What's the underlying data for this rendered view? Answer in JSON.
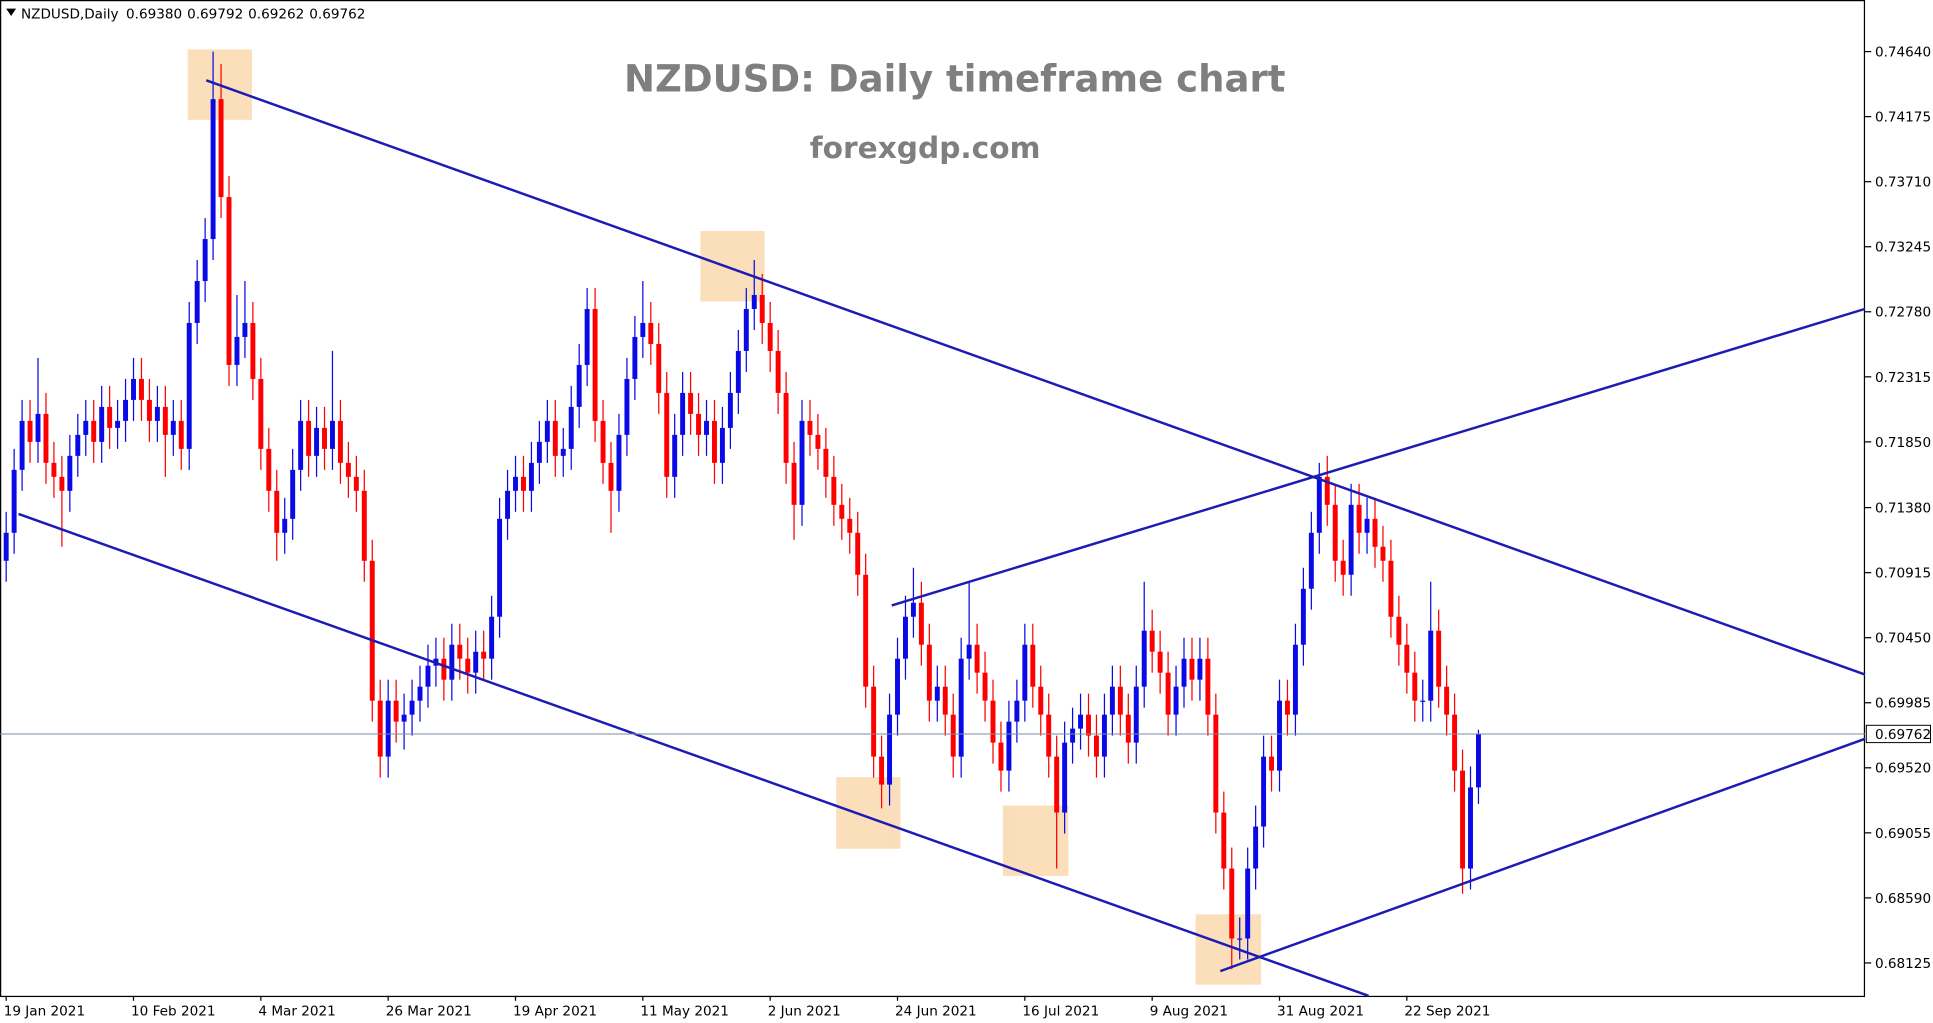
{
  "header": {
    "symbol": "NZDUSD,Daily",
    "ohlc": [
      "0.69380",
      "0.69792",
      "0.69262",
      "0.69762"
    ]
  },
  "chart_data": {
    "type": "candlestick",
    "title": "NZDUSD: Daily timeframe chart",
    "subtitle": "forexgdp.com",
    "up_color": "#0a0ae6",
    "down_color": "#ff0000",
    "categories": [
      "19 Jan 2021",
      null,
      null,
      null,
      null,
      null,
      null,
      null,
      null,
      null,
      null,
      null,
      null,
      null,
      null,
      null,
      "10 Feb 2021",
      null,
      null,
      null,
      null,
      null,
      null,
      null,
      null,
      null,
      null,
      null,
      null,
      null,
      null,
      null,
      "4 Mar 2021",
      null,
      null,
      null,
      null,
      null,
      null,
      null,
      null,
      null,
      null,
      null,
      null,
      null,
      null,
      null,
      "26 Mar 2021",
      null,
      null,
      null,
      null,
      null,
      null,
      null,
      null,
      null,
      null,
      null,
      null,
      null,
      null,
      null,
      "19 Apr 2021",
      null,
      null,
      null,
      null,
      null,
      null,
      null,
      null,
      null,
      null,
      null,
      null,
      null,
      null,
      null,
      "11 May 2021",
      null,
      null,
      null,
      null,
      null,
      null,
      null,
      null,
      null,
      null,
      null,
      null,
      null,
      null,
      null,
      "2 Jun 2021",
      null,
      null,
      null,
      null,
      null,
      null,
      null,
      null,
      null,
      null,
      null,
      null,
      null,
      null,
      null,
      "24 Jun 2021",
      null,
      null,
      null,
      null,
      null,
      null,
      null,
      null,
      null,
      null,
      null,
      null,
      null,
      null,
      null,
      "16 Jul 2021",
      null,
      null,
      null,
      null,
      null,
      null,
      null,
      null,
      null,
      null,
      null,
      null,
      null,
      null,
      null,
      "9 Aug 2021",
      null,
      null,
      null,
      null,
      null,
      null,
      null,
      null,
      null,
      null,
      null,
      null,
      null,
      null,
      null,
      "31 Aug 2021",
      null,
      null,
      null,
      null,
      null,
      null,
      null,
      null,
      null,
      null,
      null,
      null,
      null,
      null,
      null,
      "22 Sep 2021",
      null,
      null,
      null,
      null,
      null,
      null,
      null,
      null,
      null
    ],
    "open": [
      0.71,
      0.712,
      0.7165,
      0.72,
      0.7185,
      0.7205,
      0.717,
      0.716,
      0.715,
      0.7175,
      0.719,
      0.72,
      0.7185,
      0.721,
      0.7195,
      0.72,
      0.7215,
      0.723,
      0.7215,
      0.72,
      0.721,
      0.719,
      0.72,
      0.718,
      0.727,
      0.73,
      0.733,
      0.743,
      0.736,
      0.724,
      0.726,
      0.727,
      0.723,
      0.718,
      0.715,
      0.712,
      0.713,
      0.7165,
      0.72,
      0.7175,
      0.7195,
      0.718,
      0.72,
      0.717,
      0.716,
      0.715,
      0.71,
      0.7,
      0.696,
      0.7,
      0.6985,
      0.699,
      0.7,
      0.701,
      0.7025,
      0.703,
      0.7015,
      0.704,
      0.703,
      0.702,
      0.7035,
      0.703,
      0.706,
      0.713,
      0.715,
      0.716,
      0.715,
      0.717,
      0.7185,
      0.72,
      0.7175,
      0.718,
      0.721,
      0.724,
      0.728,
      0.72,
      0.717,
      0.715,
      0.719,
      0.723,
      0.726,
      0.727,
      0.7255,
      0.722,
      0.716,
      0.719,
      0.722,
      0.7205,
      0.719,
      0.72,
      0.717,
      0.7195,
      0.722,
      0.725,
      0.728,
      0.729,
      0.727,
      0.725,
      0.722,
      0.717,
      0.714,
      0.72,
      0.719,
      0.718,
      0.716,
      0.714,
      0.713,
      0.712,
      0.709,
      0.701,
      0.696,
      0.694,
      0.699,
      0.703,
      0.706,
      0.707,
      0.704,
      0.7,
      0.701,
      0.699,
      0.696,
      0.703,
      0.704,
      0.702,
      0.7,
      0.697,
      0.695,
      0.6985,
      0.7,
      0.704,
      0.701,
      0.699,
      0.696,
      0.692,
      0.697,
      0.698,
      0.699,
      0.6975,
      0.696,
      0.699,
      0.701,
      0.699,
      0.697,
      0.701,
      0.705,
      0.7035,
      0.702,
      0.699,
      0.701,
      0.703,
      0.7015,
      0.703,
      0.699,
      0.692,
      0.688,
      0.683,
      0.683,
      0.688,
      0.691,
      0.696,
      0.695,
      0.7,
      0.699,
      0.704,
      0.708,
      0.712,
      0.716,
      0.714,
      0.71,
      0.709,
      0.714,
      0.712,
      0.713,
      0.711,
      0.71,
      0.706,
      0.704,
      0.702,
      0.7,
      0.7,
      0.705,
      0.701,
      0.699,
      0.695,
      0.688,
      0.6938
    ],
    "high": [
      0.7135,
      0.718,
      0.7215,
      0.7215,
      0.7245,
      0.722,
      0.7185,
      0.7175,
      0.719,
      0.7205,
      0.7215,
      0.7215,
      0.7225,
      0.7225,
      0.7215,
      0.723,
      0.7245,
      0.7245,
      0.723,
      0.7225,
      0.7225,
      0.7215,
      0.7215,
      0.7285,
      0.7315,
      0.7345,
      0.7464,
      0.7455,
      0.7375,
      0.729,
      0.73,
      0.7285,
      0.7245,
      0.7195,
      0.7165,
      0.7145,
      0.718,
      0.7215,
      0.7215,
      0.721,
      0.721,
      0.725,
      0.7215,
      0.7185,
      0.7175,
      0.7165,
      0.7115,
      0.7015,
      0.7015,
      0.7015,
      0.7005,
      0.7015,
      0.7025,
      0.704,
      0.7045,
      0.7045,
      0.7055,
      0.7055,
      0.7045,
      0.705,
      0.705,
      0.7075,
      0.7145,
      0.7165,
      0.7175,
      0.7175,
      0.7185,
      0.72,
      0.7215,
      0.7215,
      0.7195,
      0.7225,
      0.7255,
      0.7295,
      0.7295,
      0.7215,
      0.7185,
      0.7205,
      0.7245,
      0.7275,
      0.73,
      0.7285,
      0.727,
      0.7235,
      0.7205,
      0.7235,
      0.7235,
      0.722,
      0.7215,
      0.7215,
      0.721,
      0.7235,
      0.7265,
      0.7295,
      0.7315,
      0.7305,
      0.7285,
      0.7265,
      0.7235,
      0.7185,
      0.7215,
      0.7215,
      0.7205,
      0.7195,
      0.7175,
      0.7155,
      0.7145,
      0.7135,
      0.7105,
      0.7025,
      0.6975,
      0.7005,
      0.7045,
      0.7075,
      0.7095,
      0.7085,
      0.7055,
      0.7025,
      0.7025,
      0.7005,
      0.7045,
      0.7085,
      0.7055,
      0.7035,
      0.7015,
      0.6985,
      0.7,
      0.7015,
      0.7055,
      0.7055,
      0.7025,
      0.7005,
      0.6975,
      0.6985,
      0.6995,
      0.7005,
      0.7005,
      0.699,
      0.7005,
      0.7025,
      0.7025,
      0.7005,
      0.7025,
      0.7085,
      0.7065,
      0.705,
      0.7035,
      0.7025,
      0.7045,
      0.7045,
      0.7045,
      0.7045,
      0.7005,
      0.6935,
      0.6895,
      0.6845,
      0.6895,
      0.6925,
      0.6975,
      0.6975,
      0.7015,
      0.7015,
      0.7055,
      0.7095,
      0.7135,
      0.717,
      0.7175,
      0.7155,
      0.7115,
      0.7155,
      0.7155,
      0.7145,
      0.7145,
      0.7125,
      0.7115,
      0.7075,
      0.7055,
      0.7035,
      0.7015,
      0.7085,
      0.7065,
      0.7025,
      0.7005,
      0.6965,
      0.6953,
      0.69792
    ],
    "low": [
      0.7085,
      0.7105,
      0.715,
      0.717,
      0.717,
      0.7155,
      0.7145,
      0.711,
      0.7135,
      0.716,
      0.7175,
      0.717,
      0.717,
      0.718,
      0.718,
      0.7185,
      0.72,
      0.72,
      0.7185,
      0.7185,
      0.716,
      0.7175,
      0.7165,
      0.7165,
      0.7255,
      0.7285,
      0.7315,
      0.7345,
      0.7225,
      0.7225,
      0.7245,
      0.7215,
      0.7165,
      0.7135,
      0.71,
      0.7105,
      0.7115,
      0.715,
      0.716,
      0.716,
      0.7165,
      0.7165,
      0.7155,
      0.7145,
      0.7135,
      0.7085,
      0.6985,
      0.6945,
      0.6945,
      0.697,
      0.6965,
      0.6975,
      0.6985,
      0.6995,
      0.701,
      0.7,
      0.7,
      0.7015,
      0.7005,
      0.7005,
      0.7015,
      0.7015,
      0.7045,
      0.7115,
      0.7135,
      0.7135,
      0.7135,
      0.7155,
      0.717,
      0.716,
      0.716,
      0.7165,
      0.7195,
      0.7225,
      0.7185,
      0.7155,
      0.712,
      0.7135,
      0.7175,
      0.7215,
      0.7245,
      0.724,
      0.7205,
      0.7145,
      0.7145,
      0.7175,
      0.719,
      0.7175,
      0.7175,
      0.7155,
      0.7155,
      0.718,
      0.7205,
      0.7235,
      0.7265,
      0.7255,
      0.7235,
      0.7205,
      0.7155,
      0.7115,
      0.7125,
      0.7175,
      0.7165,
      0.7145,
      0.7125,
      0.7115,
      0.7105,
      0.7075,
      0.6995,
      0.6945,
      0.6923,
      0.6925,
      0.6975,
      0.7015,
      0.7045,
      0.7025,
      0.6985,
      0.6985,
      0.6975,
      0.6945,
      0.6945,
      0.7015,
      0.7005,
      0.6985,
      0.6955,
      0.6935,
      0.6935,
      0.697,
      0.6985,
      0.6995,
      0.6975,
      0.6945,
      0.688,
      0.6905,
      0.6955,
      0.6965,
      0.696,
      0.6945,
      0.6945,
      0.6975,
      0.6975,
      0.6955,
      0.6955,
      0.6995,
      0.702,
      0.7005,
      0.6975,
      0.6975,
      0.6995,
      0.7,
      0.7,
      0.6975,
      0.6905,
      0.6865,
      0.6808,
      0.6815,
      0.6815,
      0.6865,
      0.6895,
      0.6935,
      0.6935,
      0.6975,
      0.6975,
      0.7025,
      0.7065,
      0.7105,
      0.7125,
      0.7085,
      0.7075,
      0.7075,
      0.7105,
      0.7105,
      0.7095,
      0.7085,
      0.7045,
      0.7025,
      0.7005,
      0.6985,
      0.6985,
      0.6985,
      0.6995,
      0.6975,
      0.6935,
      0.6862,
      0.6865,
      0.69262
    ],
    "close": [
      0.712,
      0.7165,
      0.72,
      0.7185,
      0.7205,
      0.717,
      0.716,
      0.715,
      0.7175,
      0.719,
      0.72,
      0.7185,
      0.721,
      0.7195,
      0.72,
      0.7215,
      0.723,
      0.7215,
      0.72,
      0.721,
      0.719,
      0.72,
      0.718,
      0.727,
      0.73,
      0.733,
      0.743,
      0.736,
      0.724,
      0.726,
      0.727,
      0.723,
      0.718,
      0.715,
      0.712,
      0.713,
      0.7165,
      0.72,
      0.7175,
      0.7195,
      0.718,
      0.72,
      0.717,
      0.716,
      0.715,
      0.71,
      0.7,
      0.696,
      0.7,
      0.6985,
      0.699,
      0.7,
      0.701,
      0.7025,
      0.703,
      0.7015,
      0.704,
      0.703,
      0.702,
      0.7035,
      0.703,
      0.706,
      0.713,
      0.715,
      0.716,
      0.715,
      0.717,
      0.7185,
      0.72,
      0.7175,
      0.718,
      0.721,
      0.724,
      0.728,
      0.72,
      0.717,
      0.715,
      0.719,
      0.723,
      0.726,
      0.727,
      0.7255,
      0.722,
      0.716,
      0.719,
      0.722,
      0.7205,
      0.719,
      0.72,
      0.717,
      0.7195,
      0.722,
      0.725,
      0.728,
      0.729,
      0.727,
      0.725,
      0.722,
      0.717,
      0.714,
      0.72,
      0.719,
      0.718,
      0.716,
      0.714,
      0.713,
      0.712,
      0.709,
      0.701,
      0.696,
      0.694,
      0.699,
      0.703,
      0.706,
      0.707,
      0.704,
      0.7,
      0.701,
      0.699,
      0.696,
      0.703,
      0.704,
      0.702,
      0.7,
      0.697,
      0.695,
      0.6985,
      0.7,
      0.704,
      0.701,
      0.699,
      0.696,
      0.692,
      0.697,
      0.698,
      0.699,
      0.6975,
      0.696,
      0.699,
      0.701,
      0.699,
      0.697,
      0.701,
      0.705,
      0.7035,
      0.702,
      0.699,
      0.701,
      0.703,
      0.7015,
      0.703,
      0.699,
      0.692,
      0.688,
      0.683,
      0.683,
      0.688,
      0.691,
      0.696,
      0.695,
      0.7,
      0.699,
      0.704,
      0.708,
      0.712,
      0.716,
      0.714,
      0.71,
      0.709,
      0.714,
      0.712,
      0.713,
      0.711,
      0.71,
      0.706,
      0.704,
      0.702,
      0.7,
      0.7,
      0.705,
      0.701,
      0.699,
      0.695,
      0.688,
      0.6938,
      0.69762
    ],
    "ylim": [
      0.6789,
      0.75
    ],
    "yticks": [
      {
        "value": 0.7464,
        "label": "0.74640"
      },
      0.74175,
      {
        "value": 0.7371,
        "label": "0.73710"
      },
      0.73245,
      {
        "value": 0.7278,
        "label": "0.72780"
      },
      0.72315,
      {
        "value": 0.7185,
        "label": "0.71850"
      },
      {
        "value": 0.7138,
        "label": "0.71380"
      },
      0.70915,
      {
        "value": 0.7045,
        "label": "0.70450"
      },
      0.69985,
      {
        "value": 0.6952,
        "label": "0.69520"
      },
      0.69055,
      {
        "value": 0.6859,
        "label": "0.68590"
      },
      0.68125
    ],
    "price_line": {
      "value": 0.69762,
      "label": "0.69762"
    }
  }
}
